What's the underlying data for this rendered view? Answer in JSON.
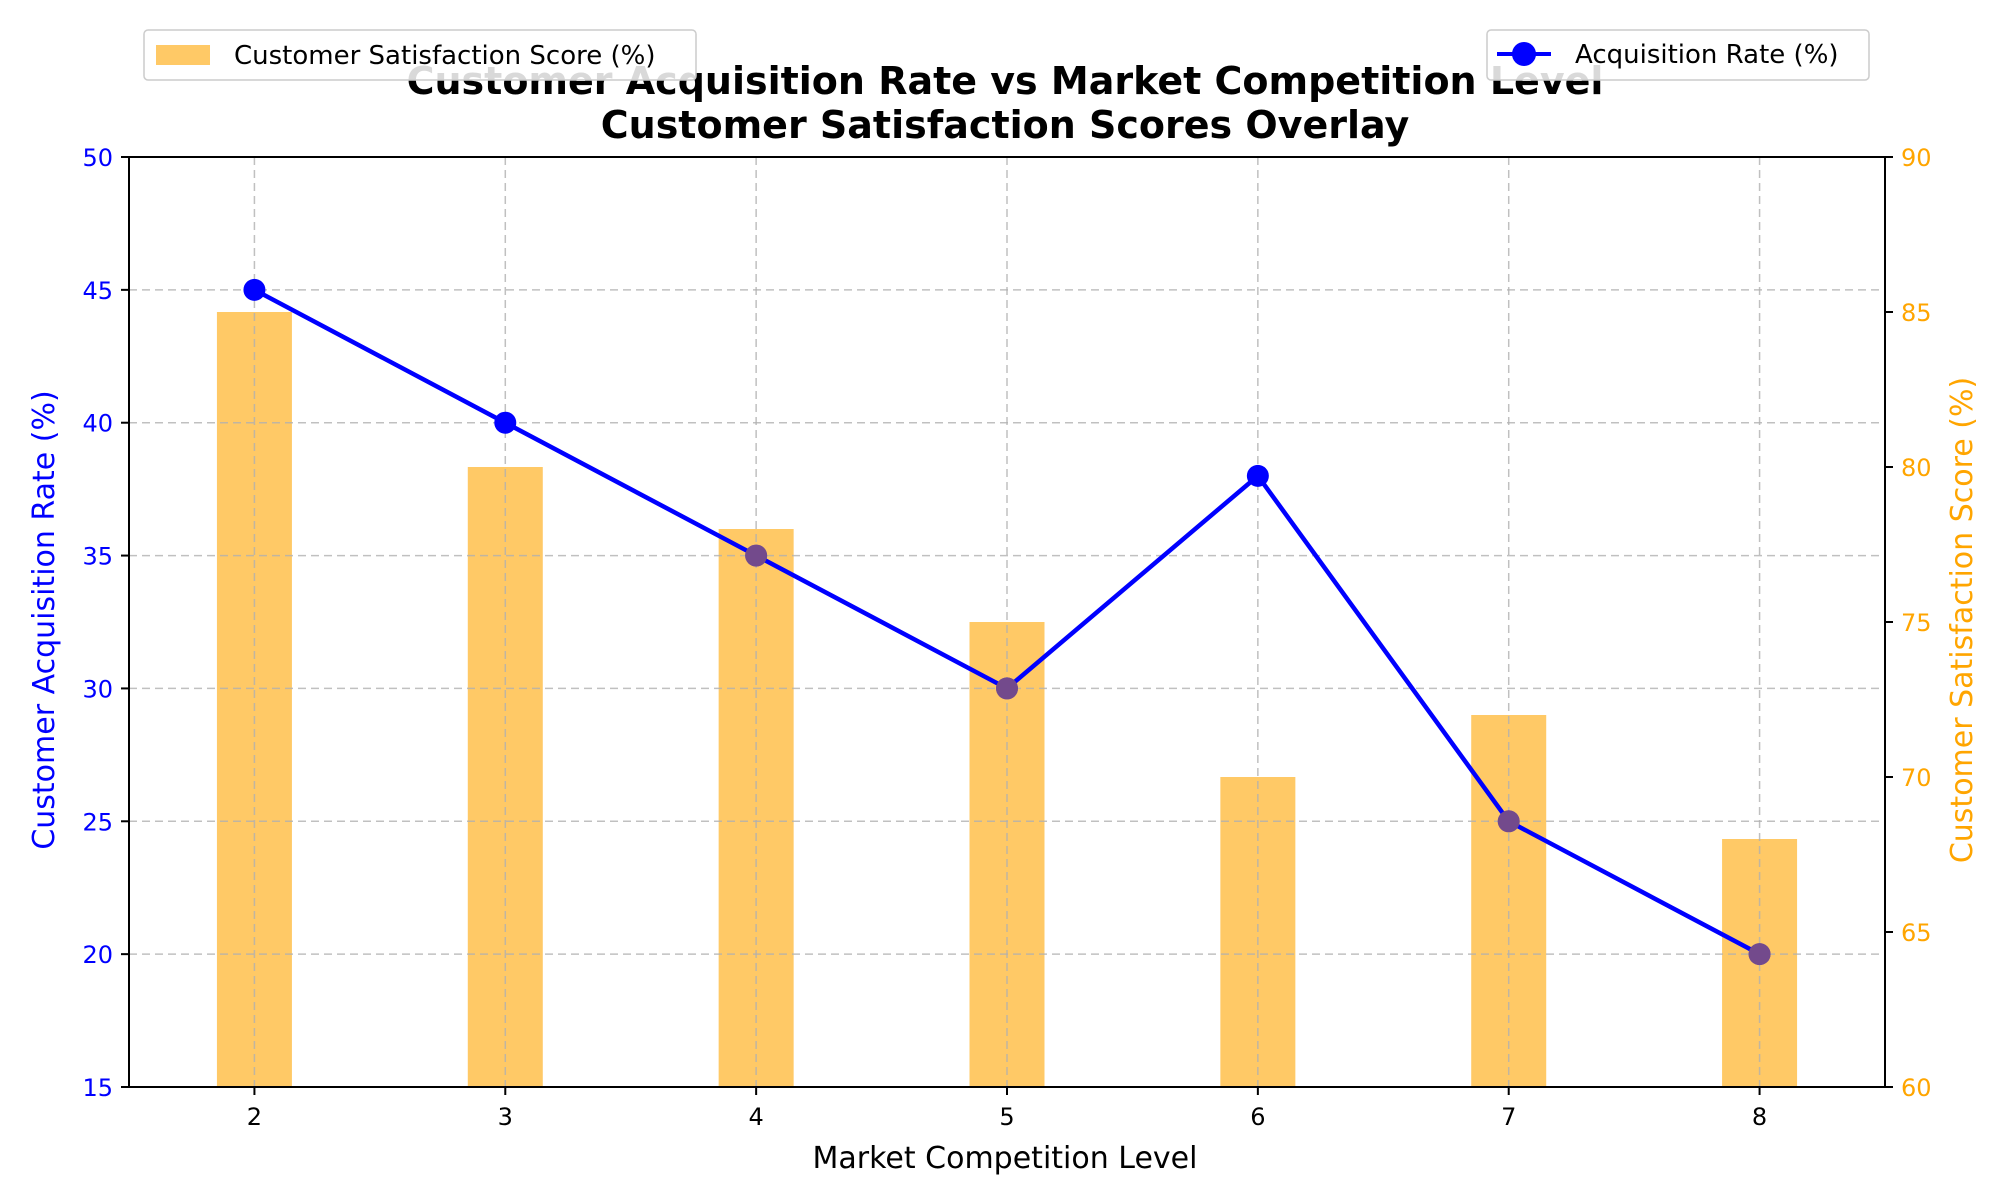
{
  "chart_data": {
    "type": "bar+line",
    "title_line1": "Customer Acquisition Rate vs Market Competition Level",
    "title_line2": "Customer Satisfaction Scores Overlay",
    "xlabel": "Market Competition Level",
    "ylabel_left": "Customer Acquisition Rate (%)",
    "ylabel_right": "Customer Satisfaction Score (%)",
    "x": [
      2,
      3,
      4,
      5,
      6,
      7,
      8
    ],
    "x_tick_labels": [
      "2",
      "3",
      "4",
      "5",
      "6",
      "7",
      "8"
    ],
    "ylim_left": [
      15,
      50
    ],
    "yticks_left": [
      "15",
      "20",
      "25",
      "30",
      "35",
      "40",
      "45",
      "50"
    ],
    "ylim_right": [
      60,
      90
    ],
    "yticks_right": [
      "60",
      "65",
      "70",
      "75",
      "80",
      "85",
      "90"
    ],
    "grid": true,
    "series": [
      {
        "name": "Acquisition Rate (%)",
        "kind": "line",
        "axis": "left",
        "color": "#0000ff",
        "values": [
          45,
          40,
          35,
          30,
          38,
          25,
          20
        ]
      },
      {
        "name": "Customer Satisfaction Score (%)",
        "kind": "bar",
        "axis": "right",
        "color": "#ffa500",
        "values": [
          85,
          80,
          78,
          75,
          70,
          72,
          68
        ]
      }
    ],
    "legend_left_placement": "upper-left",
    "legend_right_placement": "upper-right",
    "colors": {
      "left_axis": "#0000ff",
      "right_axis": "#ffa500",
      "grid": "#b0b0b0"
    }
  }
}
